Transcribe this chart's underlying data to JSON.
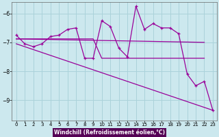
{
  "xlabel": "Windchill (Refroidissement éolien,°C)",
  "xlim": [
    -0.5,
    23.5
  ],
  "ylim": [
    -9.7,
    -5.6
  ],
  "yticks": [
    -9,
    -8,
    -7,
    -6
  ],
  "xticks": [
    0,
    1,
    2,
    3,
    4,
    5,
    6,
    7,
    8,
    9,
    10,
    11,
    12,
    13,
    14,
    15,
    16,
    17,
    18,
    19,
    20,
    21,
    22,
    23
  ],
  "bg_color": "#cce8ee",
  "grid_color": "#aad2da",
  "line_color": "#990099",
  "series": {
    "actual": {
      "x": [
        0,
        1,
        2,
        3,
        4,
        5,
        6,
        7,
        8,
        9,
        10,
        11,
        12,
        13,
        14,
        15,
        16,
        17,
        18,
        19,
        20,
        21,
        22,
        23
      ],
      "y": [
        -6.75,
        -7.05,
        -7.15,
        -7.05,
        -6.8,
        -6.75,
        -6.55,
        -6.5,
        -7.55,
        -7.55,
        -6.25,
        -6.45,
        -7.2,
        -7.5,
        -5.75,
        -6.55,
        -6.35,
        -6.5,
        -6.5,
        -6.7,
        -8.1,
        -8.5,
        -8.35,
        -9.35
      ]
    },
    "mean": {
      "x": [
        0,
        22
      ],
      "y": [
        -6.88,
        -7.0
      ]
    },
    "upper_envelope": {
      "x": [
        0,
        9,
        10,
        22
      ],
      "y": [
        -6.88,
        -6.88,
        -7.55,
        -7.55
      ]
    },
    "diagonal": {
      "x": [
        0,
        23
      ],
      "y": [
        -7.05,
        -9.35
      ]
    }
  }
}
